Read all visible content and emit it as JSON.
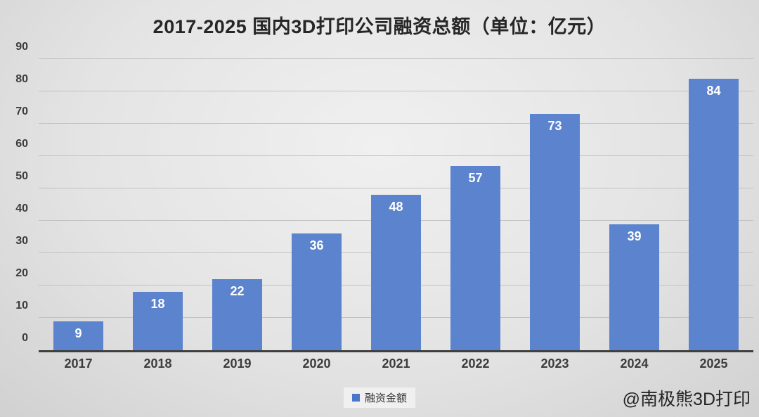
{
  "title": "2017-2025 国内3D打印公司融资总额（单位：亿元）",
  "chart_data": {
    "type": "bar",
    "title": "2017-2025 国内3D打印公司融资总额（单位：亿元）",
    "categories": [
      "2017",
      "2018",
      "2019",
      "2020",
      "2021",
      "2022",
      "2023",
      "2024",
      "2025"
    ],
    "series": [
      {
        "name": "融资金额",
        "values": [
          9,
          18,
          22,
          36,
          48,
          57,
          73,
          39,
          84
        ]
      }
    ],
    "xlabel": "",
    "ylabel": "",
    "ylim": [
      0,
      90
    ],
    "yticks": [
      0,
      10,
      20,
      30,
      40,
      50,
      60,
      70,
      80,
      90
    ],
    "grid": true,
    "legend_position": "bottom-center",
    "bar_color": "#5b83ce",
    "bar_label_color": "#ffffff"
  },
  "legend": {
    "label": "融资金额",
    "marker_color": "#4a77c9"
  },
  "watermark": "@南极熊3D打印",
  "colors": {
    "bar": "#5b83ce",
    "legend_marker": "#4a77c9",
    "gridline": "#c2c2c2",
    "axis_line": "#3f3f3f",
    "title_text": "#262626",
    "tick_text": "#3c3c3c"
  }
}
